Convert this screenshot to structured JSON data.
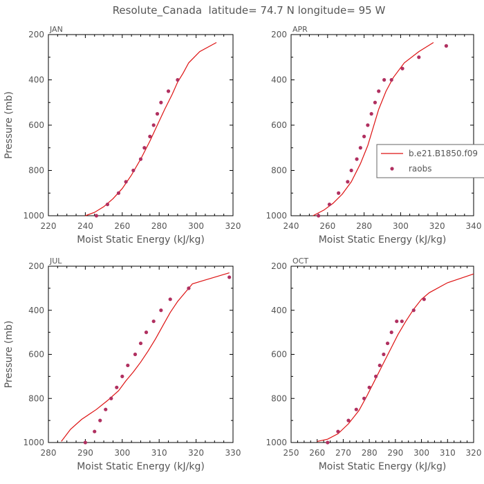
{
  "title": "Resolute_Canada  latitude= 74.7 N longitude= 95 W",
  "colors": {
    "model": "#dd1111",
    "obs": "#b03060",
    "axis": "#000000",
    "label": "#555555"
  },
  "legend": {
    "model_label": "b.e21.B1850.f09",
    "obs_label": "raobs",
    "placement": "right-middle"
  },
  "chart_data": [
    {
      "type": "line",
      "title": "JAN",
      "xlabel": "Moist Static Energy (kJ/kg)",
      "ylabel": "Pressure (mb)",
      "xlim": [
        220,
        320
      ],
      "ylim": [
        1000,
        200
      ],
      "xticks": [
        220,
        240,
        260,
        280,
        300,
        320
      ],
      "yticks": [
        200,
        400,
        600,
        800,
        1000
      ],
      "series": [
        {
          "kind": "line",
          "x": [
            240,
            245,
            250,
            255,
            260,
            265,
            270,
            275,
            279,
            283,
            287,
            290,
            293,
            296,
            302,
            311
          ],
          "y": [
            1000,
            985,
            960,
            925,
            880,
            820,
            750,
            670,
            600,
            530,
            465,
            410,
            370,
            325,
            275,
            235
          ]
        },
        {
          "kind": "scatter",
          "name": "raobs",
          "x": [
            246,
            252,
            258,
            262,
            266,
            270,
            272,
            275,
            277,
            279,
            281,
            285,
            290
          ],
          "y": [
            1000,
            950,
            900,
            850,
            800,
            750,
            700,
            650,
            600,
            550,
            500,
            450,
            400
          ]
        }
      ]
    },
    {
      "type": "line",
      "title": "APR",
      "xlabel": "Moist Static Energy (kJ/kg)",
      "ylabel": "",
      "xlim": [
        240,
        340
      ],
      "ylim": [
        1000,
        200
      ],
      "xticks": [
        240,
        260,
        280,
        300,
        320,
        340
      ],
      "yticks": [
        200,
        400,
        600,
        800,
        1000
      ],
      "series": [
        {
          "kind": "line",
          "x": [
            252,
            258,
            263,
            268,
            273,
            278,
            282,
            285,
            288,
            292,
            296,
            302,
            310,
            318
          ],
          "y": [
            1000,
            975,
            945,
            905,
            850,
            770,
            690,
            610,
            530,
            450,
            390,
            325,
            275,
            235
          ]
        },
        {
          "kind": "scatter",
          "name": "raobs",
          "x": [
            255,
            261,
            266,
            271,
            273,
            276,
            278,
            280,
            282,
            284,
            286,
            288,
            291,
            295,
            301,
            310,
            325
          ],
          "y": [
            1000,
            950,
            900,
            850,
            800,
            750,
            700,
            650,
            600,
            550,
            500,
            450,
            400,
            400,
            350,
            300,
            250
          ]
        }
      ]
    },
    {
      "type": "line",
      "title": "JUL",
      "xlabel": "Moist Static Energy (kJ/kg)",
      "ylabel": "Pressure (mb)",
      "xlim": [
        280,
        330
      ],
      "ylim": [
        1000,
        200
      ],
      "xticks": [
        280,
        290,
        300,
        310,
        320,
        330
      ],
      "yticks": [
        200,
        400,
        600,
        800,
        1000
      ],
      "series": [
        {
          "kind": "line",
          "x": [
            283.5,
            286,
            289,
            293,
            296,
            299,
            301,
            303,
            305,
            307,
            309,
            311,
            313,
            315,
            317,
            319,
            322,
            325,
            329
          ],
          "y": [
            995,
            940,
            895,
            850,
            810,
            765,
            720,
            680,
            635,
            585,
            530,
            470,
            410,
            360,
            320,
            280,
            265,
            250,
            230
          ]
        },
        {
          "kind": "scatter",
          "name": "raobs",
          "x": [
            290,
            292.5,
            294,
            295.5,
            297,
            298.5,
            300,
            301.5,
            303.5,
            305,
            306.5,
            308.5,
            310.5,
            313,
            318,
            329
          ],
          "y": [
            1000,
            950,
            900,
            850,
            800,
            750,
            700,
            650,
            600,
            550,
            500,
            450,
            400,
            350,
            300,
            250
          ]
        }
      ]
    },
    {
      "type": "line",
      "title": "OCT",
      "xlabel": "Moist Static Energy (kJ/kg)",
      "ylabel": "",
      "xlim": [
        250,
        320
      ],
      "ylim": [
        1000,
        200
      ],
      "xticks": [
        250,
        260,
        270,
        280,
        290,
        300,
        310,
        320
      ],
      "yticks": [
        200,
        400,
        600,
        800,
        1000
      ],
      "series": [
        {
          "kind": "line",
          "x": [
            260,
            264,
            268,
            272,
            276,
            279,
            282,
            285,
            288,
            291,
            294,
            297,
            300,
            303,
            310,
            320
          ],
          "y": [
            995,
            985,
            960,
            915,
            855,
            790,
            720,
            650,
            580,
            510,
            450,
            395,
            350,
            320,
            275,
            235
          ]
        },
        {
          "kind": "scatter",
          "name": "raobs",
          "x": [
            264,
            268,
            272,
            275,
            278,
            280,
            282.5,
            284,
            285.5,
            287,
            288.5,
            290.5,
            292.5,
            297,
            301
          ],
          "y": [
            1000,
            950,
            900,
            850,
            800,
            750,
            700,
            650,
            600,
            550,
            500,
            450,
            450,
            400,
            350
          ]
        }
      ]
    }
  ]
}
